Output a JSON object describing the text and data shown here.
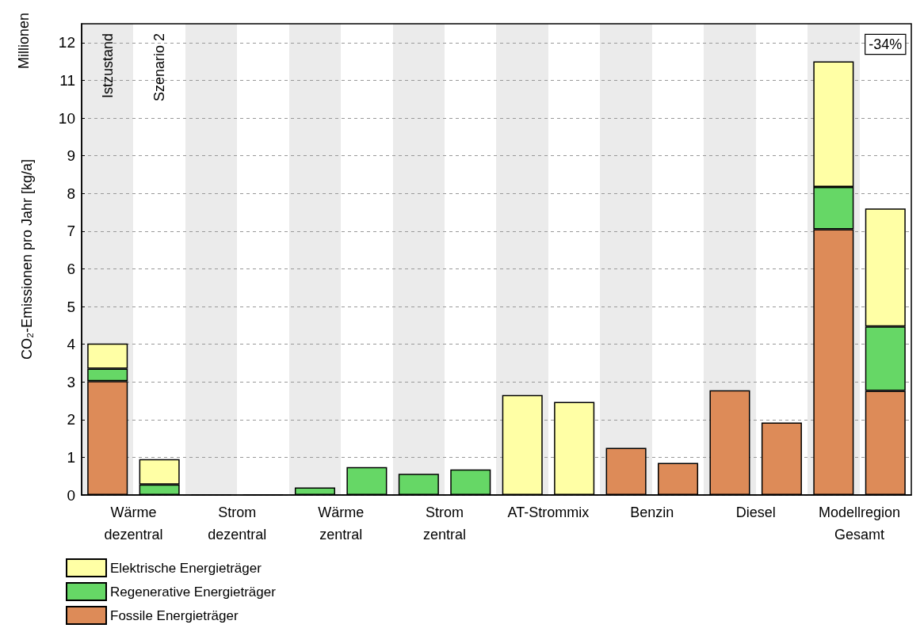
{
  "chart_data": {
    "type": "bar",
    "stacked": true,
    "ylabel": "CO₂-Emissionen pro Jahr [kg/a]",
    "categories": [
      "Wärme\ndezentral",
      null,
      "Strom\ndezentral",
      null,
      "Wärme\nzentral",
      null,
      "Strom\nzentral",
      null,
      "AT-Strommix",
      null,
      "Benzin",
      null,
      "Diesel",
      null,
      "Modellregion\nGesamt",
      null
    ],
    "series": [
      {
        "name": "Fossile Energieträger",
        "color": "#dd8b58",
        "values": [
          3.02,
          null,
          null,
          null,
          null,
          null,
          null,
          null,
          null,
          null,
          1.25,
          0.85,
          2.78,
          1.92,
          7.05,
          2.76
        ]
      },
      {
        "name": "Regenerative Energieträger",
        "color": "#66d766",
        "values": [
          0.33,
          0.28,
          0.01,
          0.01,
          0.2,
          0.74,
          0.56,
          0.68,
          null,
          null,
          null,
          null,
          null,
          null,
          1.12,
          1.71
        ]
      },
      {
        "name": "Elektrische Energieträger",
        "color": "#ffffa5",
        "values": [
          0.67,
          0.67,
          null,
          null,
          null,
          null,
          null,
          null,
          2.65,
          2.47,
          null,
          null,
          null,
          null,
          3.33,
          3.13
        ]
      }
    ],
    "ylim": [
      0,
      12.5
    ],
    "yticks": [
      0,
      1,
      2,
      3,
      4,
      5,
      6,
      7,
      8,
      9,
      10,
      11,
      12
    ],
    "grid": "y",
    "legend": "bottom left",
    "annotations": [
      "Millionen",
      "Istzustand",
      "Szenario 2",
      "-34%"
    ]
  }
}
